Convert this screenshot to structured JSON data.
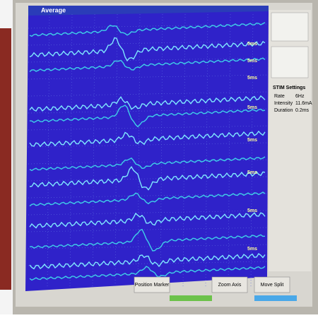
{
  "window": {
    "title": "Average"
  },
  "plot": {
    "scale_labels": [
      "5ms",
      "5ms",
      "5ms",
      "5ms",
      "5ms",
      "5ms",
      "5ms",
      "5ms"
    ]
  },
  "settings": {
    "title": "STIM Settings",
    "rows": [
      [
        "Rate",
        "6Hz"
      ],
      [
        "Intensity",
        "11.6mA"
      ],
      [
        "Duration",
        "0.2ms"
      ]
    ]
  },
  "buttons": [
    "Position Marker",
    "Zoom Axis",
    "Move Split"
  ]
}
